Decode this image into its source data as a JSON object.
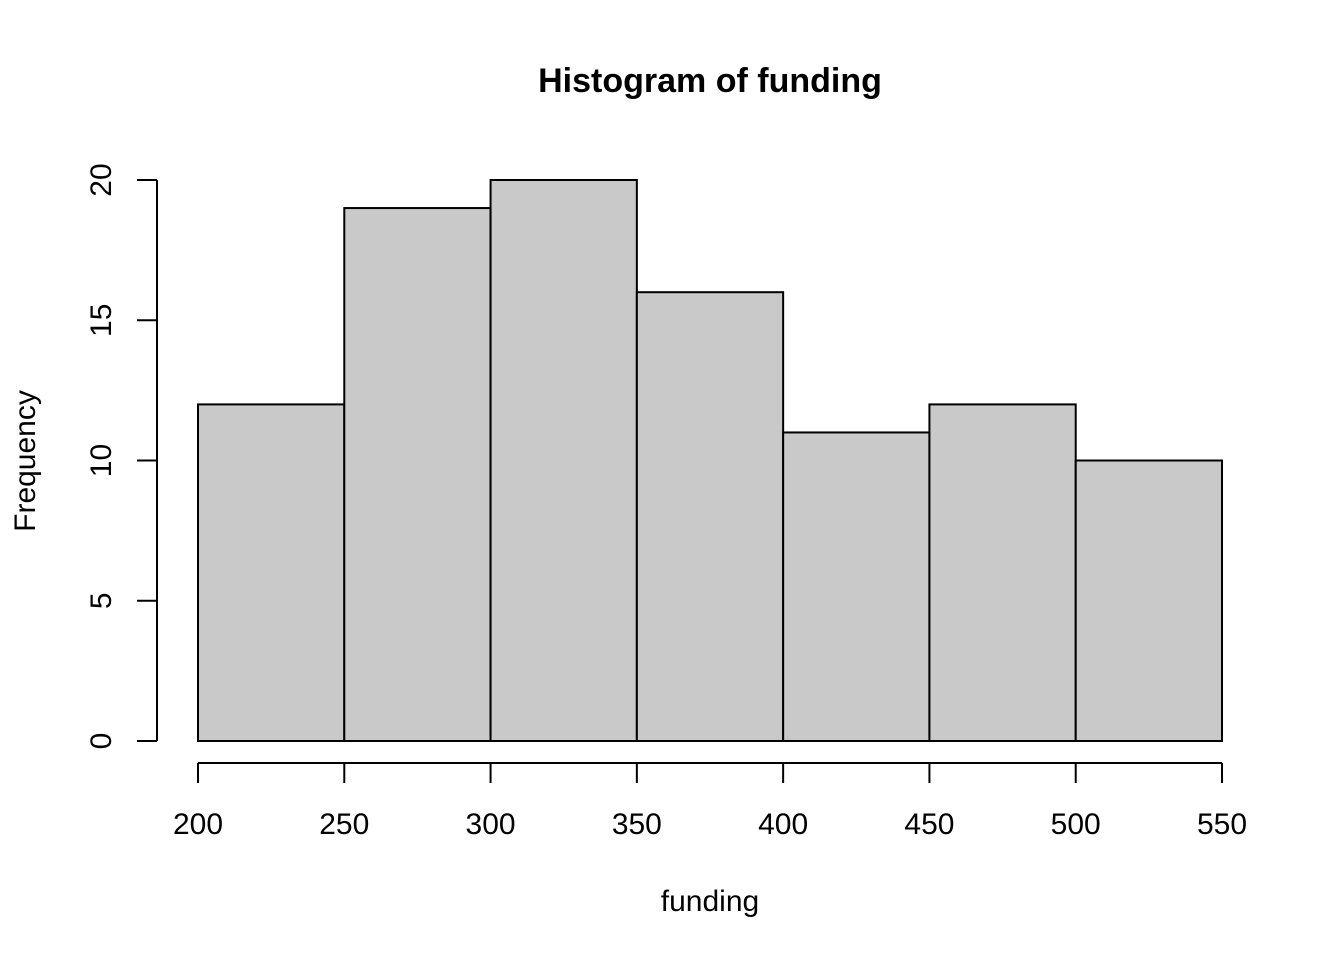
{
  "chart_data": {
    "type": "bar",
    "title": "Histogram of funding",
    "xlabel": "funding",
    "ylabel": "Frequency",
    "bins": [
      {
        "from": 200,
        "to": 250,
        "count": 12
      },
      {
        "from": 250,
        "to": 300,
        "count": 19
      },
      {
        "from": 300,
        "to": 350,
        "count": 20
      },
      {
        "from": 350,
        "to": 400,
        "count": 16
      },
      {
        "from": 400,
        "to": 450,
        "count": 11
      },
      {
        "from": 450,
        "to": 500,
        "count": 12
      },
      {
        "from": 500,
        "to": 550,
        "count": 10
      }
    ],
    "xlim": [
      200,
      550
    ],
    "ylim": [
      0,
      20
    ],
    "xticks": [
      "200",
      "250",
      "300",
      "350",
      "400",
      "450",
      "500",
      "550"
    ],
    "yticks": [
      "0",
      "5",
      "10",
      "15",
      "20"
    ],
    "grid": false,
    "colors": {
      "bar_fill": "#c9c9c9",
      "bar_stroke": "#000000"
    }
  }
}
